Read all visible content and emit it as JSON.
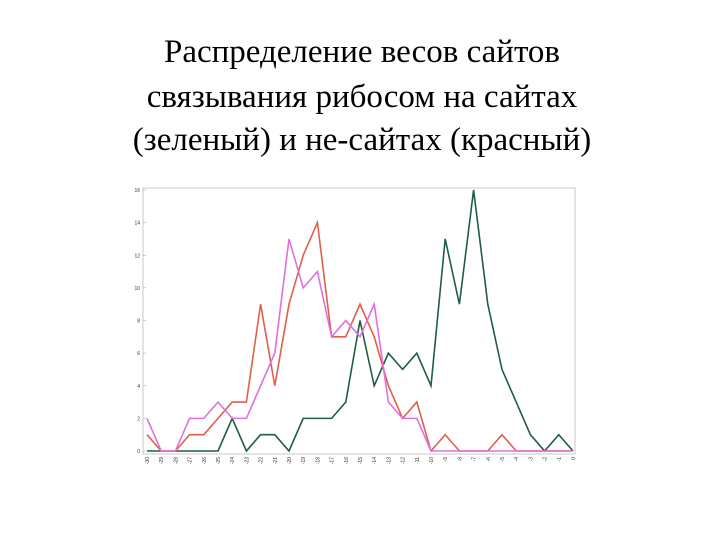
{
  "chart_data": {
    "type": "line",
    "title": [
      "Распределение весов сайтов",
      "связывания рибосом на сайтах",
      "(зеленый) и не-сайтах (красный)"
    ],
    "categories": [
      "-30",
      "-29",
      "-28",
      "-27",
      "-26",
      "-25",
      "-24",
      "-23",
      "-22",
      "-21",
      "-20",
      "-19",
      "-18",
      "-17",
      "-16",
      "-15",
      "-14",
      "-13",
      "-12",
      "-11",
      "-10",
      "-9",
      "-8",
      "-7",
      "-6",
      "-5",
      "-4",
      "-3",
      "-2",
      "-1",
      "0"
    ],
    "series": [
      {
        "color": "#1f5e45",
        "values": [
          0,
          0,
          0,
          0,
          0,
          0,
          2,
          0,
          1,
          1,
          0,
          2,
          2,
          2,
          3,
          8,
          4,
          6,
          5,
          6,
          4,
          13,
          9,
          16,
          9,
          5,
          3,
          1,
          0,
          1,
          0
        ]
      },
      {
        "color": "#e0604a",
        "values": [
          1,
          0,
          0,
          1,
          1,
          2,
          3,
          3,
          9,
          4,
          9,
          12,
          14,
          7,
          7,
          9,
          7,
          4,
          2,
          3,
          0,
          1,
          0,
          0,
          0,
          1,
          0,
          0,
          0,
          0,
          0
        ]
      },
      {
        "color": "#e070e0",
        "values": [
          2,
          0,
          0,
          2,
          2,
          3,
          2,
          2,
          4,
          6,
          13,
          10,
          11,
          7,
          8,
          7,
          9,
          3,
          2,
          2,
          0,
          0,
          0,
          0,
          0,
          0,
          0,
          0,
          0,
          0,
          0
        ]
      }
    ],
    "ylim": [
      0,
      16
    ],
    "yticks": [
      0,
      2,
      4,
      6,
      8,
      10,
      12,
      14,
      16
    ]
  }
}
